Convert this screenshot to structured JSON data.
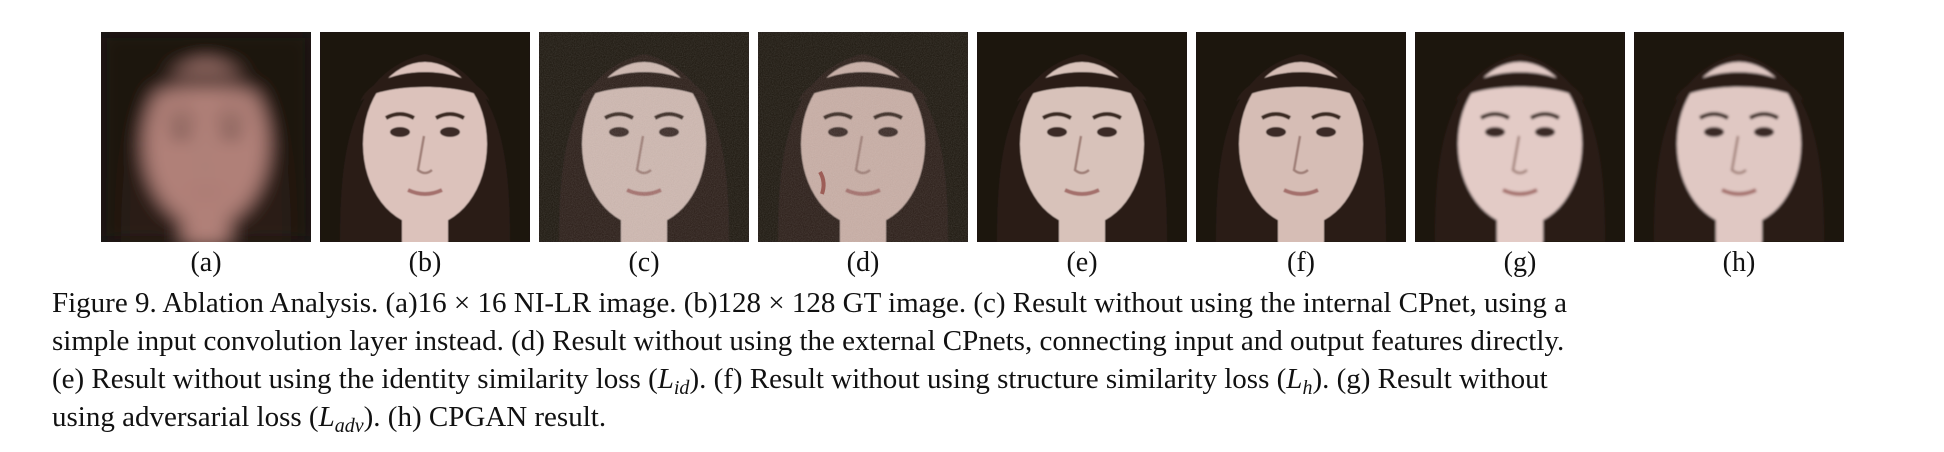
{
  "figure": {
    "panels": [
      {
        "label": "(a)",
        "alt": "16 × 16 NI-LR face (blurred)",
        "variant": "blur",
        "skin": "#b08078"
      },
      {
        "label": "(b)",
        "alt": "128 × 128 GT face",
        "variant": "sharp",
        "skin": "#dcc2bb"
      },
      {
        "label": "(c)",
        "alt": "Result without internal CPnet",
        "variant": "noisy",
        "skin": "#cfb8b0"
      },
      {
        "label": "(d)",
        "alt": "Result without external CPnets",
        "variant": "artifact",
        "skin": "#c9aea5"
      },
      {
        "label": "(e)",
        "alt": "Result without identity similarity loss",
        "variant": "sharp",
        "skin": "#d8c2ba"
      },
      {
        "label": "(f)",
        "alt": "Result without structure similarity loss",
        "variant": "sharp",
        "skin": "#d6bdb5"
      },
      {
        "label": "(g)",
        "alt": "Result without adversarial loss",
        "variant": "smooth",
        "skin": "#e3cbc6"
      },
      {
        "label": "(h)",
        "alt": "CPGAN result",
        "variant": "smooth",
        "skin": "#e0c8c3"
      }
    ],
    "caption": {
      "line1": "Figure 9. Ablation Analysis. (a)16 × 16 NI-LR image. (b)128 × 128 GT image. (c) Result without using the internal CPnet, using a",
      "line2": "simple input convolution layer instead. (d) Result without using the external CPnets, connecting input and output features directly.",
      "line3_a": "(e) Result without using the identity similarity loss (",
      "line3_m1": "L",
      "line3_s1": "id",
      "line3_b": "). (f) Result without using structure similarity loss (",
      "line3_m2": "L",
      "line3_s2": "h",
      "line3_c": "). (g) Result without",
      "line4_a": "using adversarial loss (",
      "line4_m": "L",
      "line4_s": "adv",
      "line4_b": "). (h) CPGAN result."
    }
  }
}
